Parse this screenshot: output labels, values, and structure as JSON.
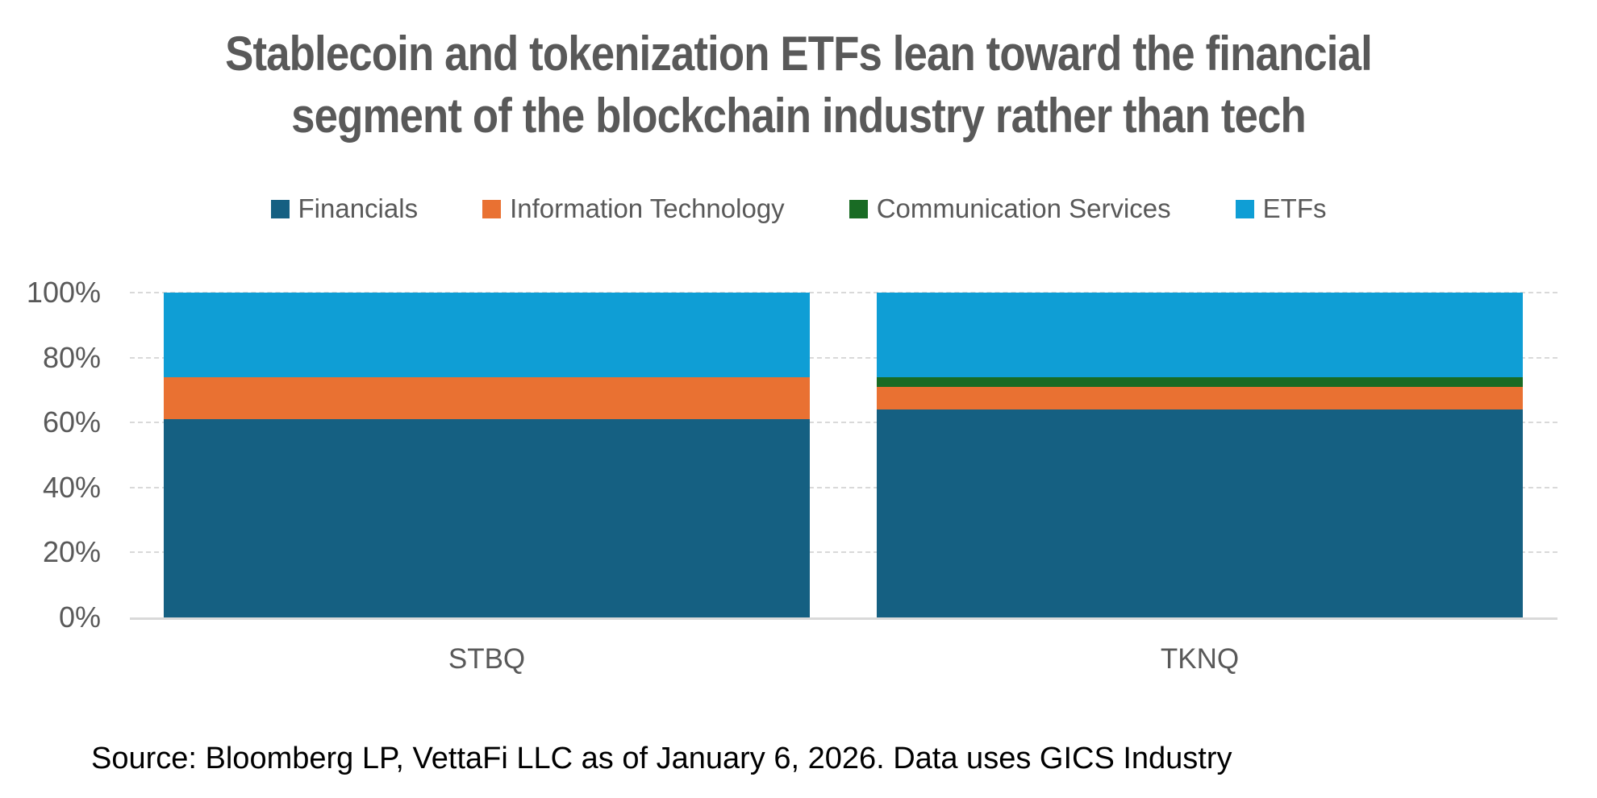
{
  "title": {
    "line1": "Stablecoin and tokenization ETFs lean toward the financial",
    "line2": "segment of the blockchain industry rather than tech"
  },
  "chart_data": {
    "type": "bar",
    "stacked": true,
    "percent": true,
    "title": "Stablecoin and tokenization ETFs lean toward the financial segment of the blockchain industry rather than tech",
    "categories": [
      "STBQ",
      "TKNQ"
    ],
    "series": [
      {
        "name": "Financials",
        "color": "#156082",
        "values": [
          61,
          64
        ]
      },
      {
        "name": "Information Technology",
        "color": "#E97132",
        "values": [
          13,
          7
        ]
      },
      {
        "name": "Communication Services",
        "color": "#196B24",
        "values": [
          0,
          3
        ]
      },
      {
        "name": "ETFs",
        "color": "#0F9ED5",
        "values": [
          26,
          26
        ]
      }
    ],
    "ylim": [
      0,
      100
    ],
    "y_ticks": [
      0,
      20,
      40,
      60,
      80,
      100
    ],
    "y_tick_format": "{v}%",
    "grid": "horizontal-dashed",
    "legend_position": "top"
  },
  "source": {
    "text": "Source: Bloomberg LP, VettaFi LLC as of January 6, 2026. Data uses GICS Industry"
  },
  "colors": {
    "background": "#FFFFFF",
    "title_text": "#595959",
    "axis_text": "#595959",
    "gridline": "#D9D9D9",
    "axis_line": "#D9D9D9",
    "source_text": "#000000"
  }
}
